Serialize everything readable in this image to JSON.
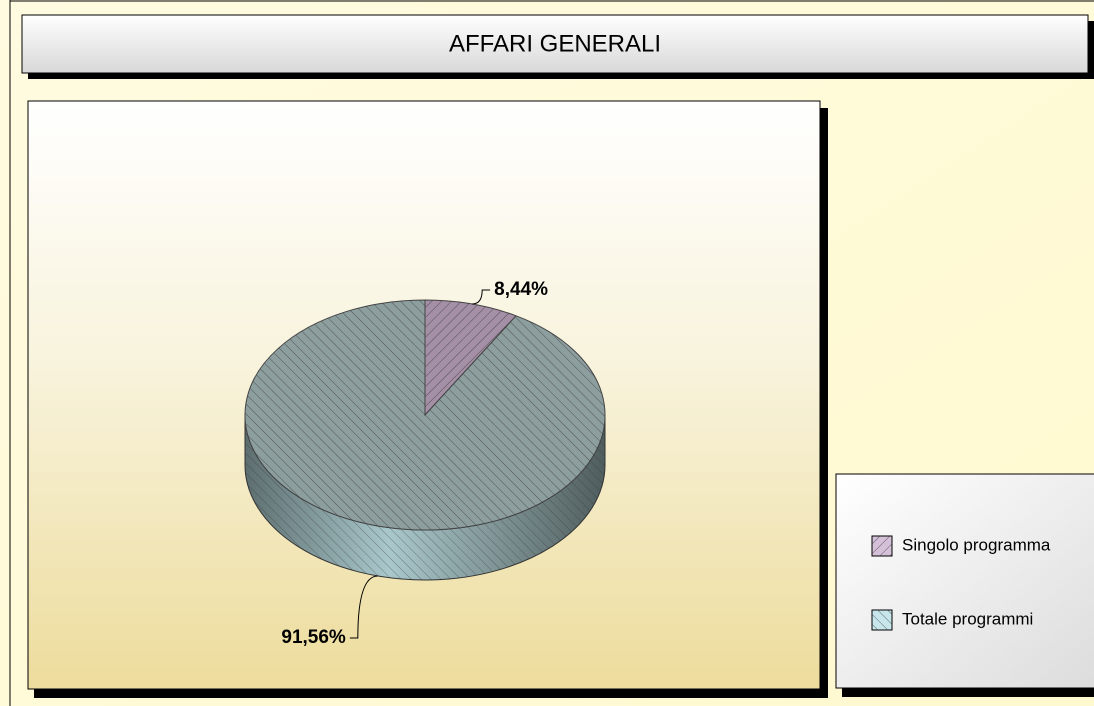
{
  "chart_data": {
    "type": "pie",
    "title": "AFFARI GENERALI",
    "categories": [
      "Singolo programma",
      "Totale programmi"
    ],
    "values": [
      8.44,
      91.56
    ],
    "value_labels": [
      "8,44%",
      "91,56%"
    ],
    "colors": [
      "#a48fa6",
      "#8d9e9f"
    ],
    "legend": "right"
  }
}
